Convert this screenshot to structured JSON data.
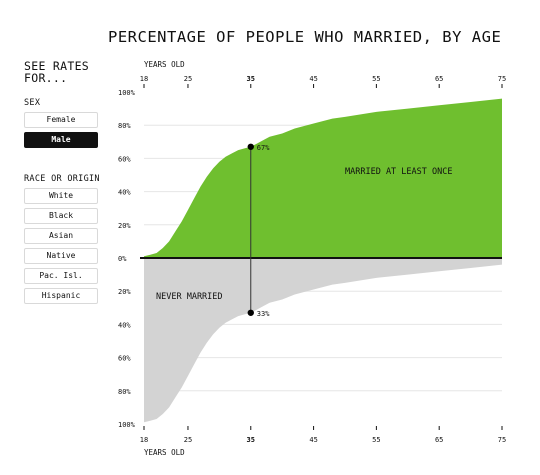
{
  "title": "PERCENTAGE OF PEOPLE WHO MARRIED, BY AGE",
  "sidebar": {
    "heading": "SEE RATES FOR...",
    "sex_label": "SEX",
    "sex_options": [
      {
        "label": "Female",
        "active": false
      },
      {
        "label": "Male",
        "active": true
      }
    ],
    "race_label": "RACE OR ORIGIN",
    "race_options": [
      {
        "label": "White"
      },
      {
        "label": "Black"
      },
      {
        "label": "Asian"
      },
      {
        "label": "Native"
      },
      {
        "label": "Pac. Isl."
      },
      {
        "label": "Hispanic"
      }
    ]
  },
  "colors": {
    "married": "#6fbf2f",
    "never": "#d3d3d3",
    "axis": "#111111",
    "grid": "#e6e6e6"
  },
  "chart_data": {
    "type": "area",
    "x_axis_label": "YEARS OLD",
    "x_ticks": [
      18,
      25,
      35,
      45,
      55,
      65,
      75
    ],
    "xlim": [
      18,
      75
    ],
    "y_ticks_top": [
      "100%",
      "80%",
      "60%",
      "40%",
      "20%",
      "0%"
    ],
    "y_ticks_bottom": [
      "20%",
      "40%",
      "60%",
      "80%",
      "100%"
    ],
    "ylim": [
      -100,
      100
    ],
    "series": [
      {
        "name": "MARRIED AT LEAST ONCE",
        "x": [
          18,
          19,
          20,
          21,
          22,
          23,
          24,
          25,
          26,
          27,
          28,
          29,
          30,
          31,
          32,
          33,
          34,
          35,
          36,
          37,
          38,
          40,
          42,
          45,
          48,
          50,
          55,
          60,
          65,
          70,
          75
        ],
        "values": [
          1,
          2,
          3,
          6,
          10,
          16,
          22,
          29,
          36,
          43,
          49,
          54,
          58,
          61,
          63,
          65,
          66,
          67,
          69,
          71,
          73,
          75,
          78,
          81,
          84,
          85,
          88,
          90,
          92,
          94,
          96
        ]
      },
      {
        "name": "NEVER MARRIED",
        "x": [
          18,
          19,
          20,
          21,
          22,
          23,
          24,
          25,
          26,
          27,
          28,
          29,
          30,
          31,
          32,
          33,
          34,
          35,
          36,
          37,
          38,
          40,
          42,
          45,
          48,
          50,
          55,
          60,
          65,
          70,
          75
        ],
        "values": [
          99,
          98,
          97,
          94,
          90,
          84,
          78,
          71,
          64,
          57,
          51,
          46,
          42,
          39,
          37,
          35,
          34,
          33,
          31,
          29,
          27,
          25,
          22,
          19,
          16,
          15,
          12,
          10,
          8,
          6,
          4
        ]
      }
    ],
    "annotation": {
      "x": 35,
      "married_label": "67%",
      "never_label": "33%",
      "married_value": 67,
      "never_value": 33
    }
  }
}
